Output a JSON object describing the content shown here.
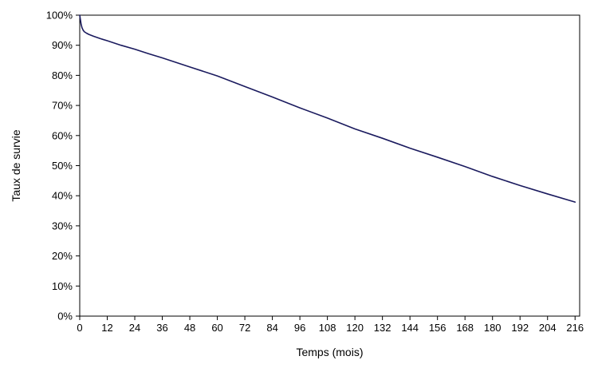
{
  "chart_data": {
    "type": "line",
    "title": "",
    "xlabel": "Temps (mois)",
    "ylabel": "Taux de survie",
    "xlim": [
      0,
      218
    ],
    "ylim": [
      0,
      100
    ],
    "x_ticks": [
      0,
      12,
      24,
      36,
      48,
      60,
      72,
      84,
      96,
      108,
      120,
      132,
      144,
      156,
      168,
      180,
      192,
      204,
      216
    ],
    "x_tick_labels": [
      "0",
      "12",
      "24",
      "36",
      "48",
      "60",
      "72",
      "84",
      "96",
      "108",
      "120",
      "132",
      "144",
      "156",
      "168",
      "180",
      "192",
      "204",
      "216"
    ],
    "y_ticks": [
      0,
      10,
      20,
      30,
      40,
      50,
      60,
      70,
      80,
      90,
      100
    ],
    "y_tick_labels": [
      "0%",
      "10%",
      "20%",
      "30%",
      "40%",
      "50%",
      "60%",
      "70%",
      "80%",
      "90%",
      "100%"
    ],
    "grid": false,
    "legend": "none",
    "series": [
      {
        "color": "#1a1a5e",
        "x": [
          0,
          0.3,
          0.6,
          1,
          1.5,
          2,
          3,
          4,
          6,
          9,
          12,
          18,
          24,
          30,
          36,
          48,
          60,
          72,
          84,
          96,
          108,
          120,
          132,
          144,
          156,
          168,
          180,
          192,
          204,
          216
        ],
        "y": [
          100,
          98.5,
          97,
          95.8,
          95,
          94.5,
          94,
          93.6,
          93,
          92.2,
          91.5,
          90,
          88.7,
          87.2,
          85.8,
          82.8,
          79.8,
          76.3,
          72.8,
          69.2,
          65.8,
          62.2,
          59.1,
          55.8,
          52.8,
          49.7,
          46.4,
          43.4,
          40.6,
          37.9
        ]
      }
    ]
  }
}
